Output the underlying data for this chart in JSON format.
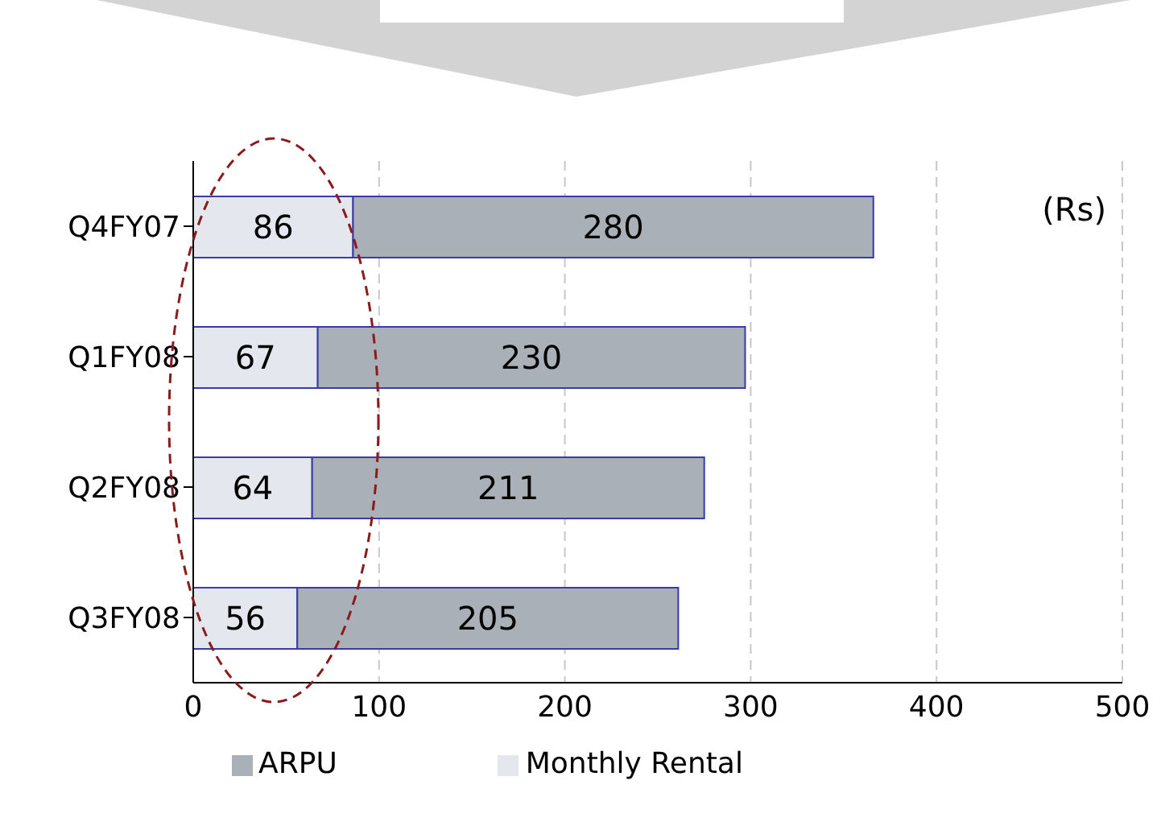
{
  "chart_data": {
    "type": "bar",
    "orientation": "horizontal",
    "stacked": true,
    "categories": [
      "Q4FY07",
      "Q1FY08",
      "Q2FY08",
      "Q3FY08"
    ],
    "series": [
      {
        "name": "Monthly Rental",
        "color": "#e4e8ee",
        "values": [
          86,
          67,
          64,
          56
        ]
      },
      {
        "name": "ARPU",
        "color": "#a9b0b8",
        "values": [
          280,
          230,
          211,
          205
        ]
      }
    ],
    "xlim": [
      0,
      500
    ],
    "xticks": [
      0,
      100,
      200,
      300,
      400,
      500
    ],
    "grid": "x",
    "legend": "bottom",
    "data_labels": true,
    "annotations": [
      "(Rs)"
    ]
  }
}
